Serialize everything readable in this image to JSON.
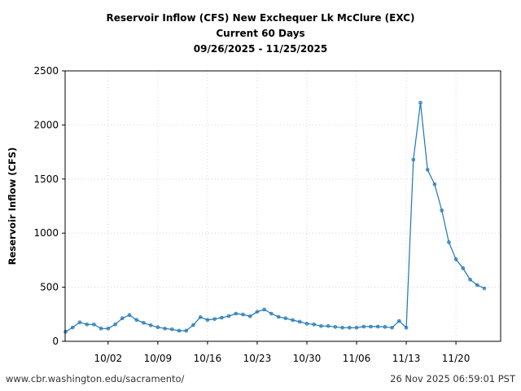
{
  "header": {
    "title_line1": "Reservoir Inflow (CFS) New Exchequer Lk McClure (EXC)",
    "title_line2": "Current 60 Days",
    "title_line3": "09/26/2025 - 11/25/2025"
  },
  "footer": {
    "source_url": "www.cbr.washington.edu/sacramento/",
    "timestamp": "26 Nov 2025 06:59:01 PST"
  },
  "colors": {
    "series": "#1f77b4",
    "grid": "#cccccc",
    "axis": "#000000"
  },
  "chart_data": {
    "type": "line",
    "title": "Reservoir Inflow (CFS) New Exchequer Lk McClure (EXC) — Current 60 Days — 09/26/2025 - 11/25/2025",
    "xlabel": "",
    "ylabel": "Reservoir Inflow (CFS)",
    "ylim": [
      0,
      2500
    ],
    "yticks": [
      0,
      500,
      1000,
      1500,
      2000,
      2500
    ],
    "xtick_labels": [
      "10/02",
      "10/09",
      "10/16",
      "10/23",
      "10/30",
      "11/06",
      "11/13",
      "11/20"
    ],
    "xtick_day_index": [
      6,
      13,
      20,
      27,
      34,
      41,
      48,
      55
    ],
    "grid": true,
    "legend": null,
    "x": [
      "09/26",
      "09/27",
      "09/28",
      "09/29",
      "09/30",
      "10/01",
      "10/02",
      "10/03",
      "10/04",
      "10/05",
      "10/06",
      "10/07",
      "10/08",
      "10/09",
      "10/10",
      "10/11",
      "10/12",
      "10/13",
      "10/14",
      "10/15",
      "10/16",
      "10/17",
      "10/18",
      "10/19",
      "10/20",
      "10/21",
      "10/22",
      "10/23",
      "10/24",
      "10/25",
      "10/26",
      "10/27",
      "10/28",
      "10/29",
      "10/30",
      "10/31",
      "11/01",
      "11/02",
      "11/03",
      "11/04",
      "11/05",
      "11/06",
      "11/07",
      "11/08",
      "11/09",
      "11/10",
      "11/11",
      "11/12",
      "11/13",
      "11/14",
      "11/15",
      "11/16",
      "11/17",
      "11/18",
      "11/19",
      "11/20",
      "11/21",
      "11/22",
      "11/23",
      "11/24"
    ],
    "series": [
      {
        "name": "Reservoir Inflow (CFS)",
        "values": [
          88,
          128,
          176,
          156,
          156,
          118,
          118,
          156,
          213,
          243,
          198,
          171,
          148,
          130,
          118,
          111,
          98,
          98,
          151,
          224,
          198,
          206,
          218,
          233,
          256,
          248,
          231,
          273,
          294,
          256,
          226,
          213,
          196,
          181,
          163,
          156,
          141,
          141,
          133,
          126,
          126,
          126,
          136,
          136,
          136,
          133,
          126,
          188,
          126,
          1679,
          2206,
          1586,
          1451,
          1210,
          916,
          758,
          675,
          570,
          520,
          489
        ]
      }
    ]
  }
}
